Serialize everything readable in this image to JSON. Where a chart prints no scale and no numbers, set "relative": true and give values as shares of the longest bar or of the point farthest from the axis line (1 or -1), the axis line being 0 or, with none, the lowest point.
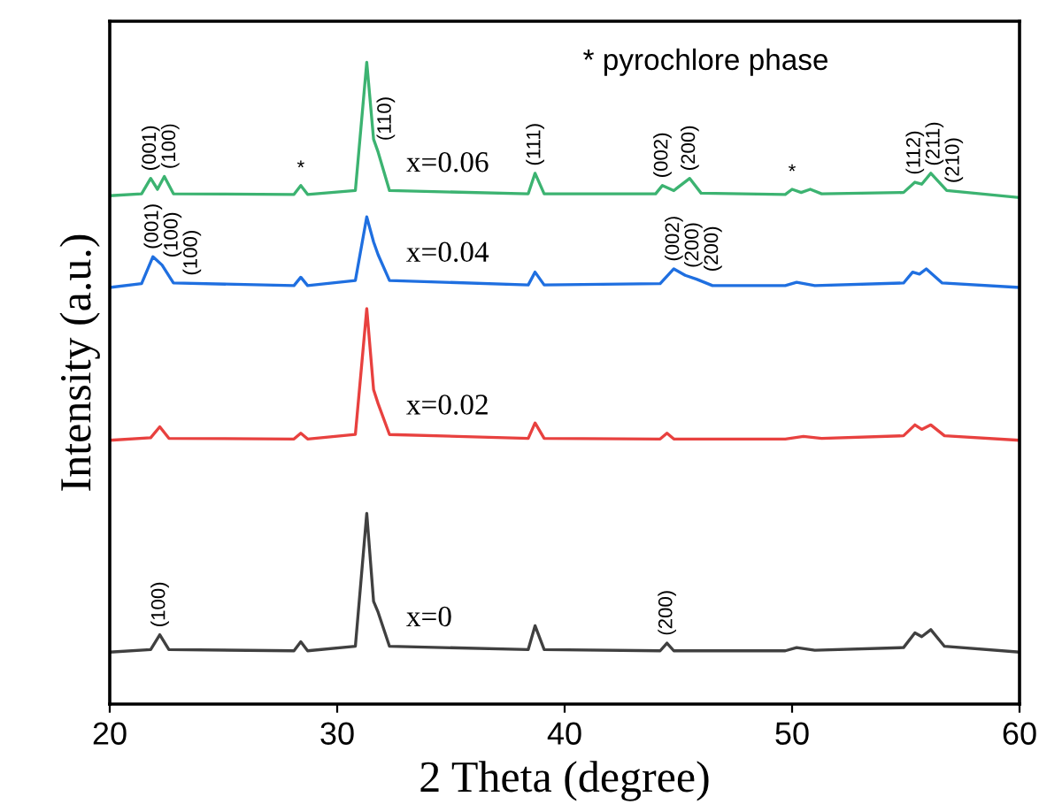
{
  "chart_data": {
    "type": "line",
    "relative": true,
    "xlabel": "2 Theta (degree)",
    "ylabel": "Intensity (a.u.)",
    "xlim": [
      20,
      60
    ],
    "xticks": [
      20,
      30,
      40,
      50,
      60
    ],
    "tick_labels": "x",
    "legend": false,
    "grid": false,
    "marker": "none",
    "line_style": "solid",
    "series": [
      {
        "name": "x=0",
        "color": "#404040",
        "x": [
          20,
          21.8,
          22.2,
          22.6,
          28.1,
          28.4,
          28.7,
          30.8,
          31.3,
          31.6,
          31.8,
          32.3,
          38.4,
          38.7,
          39.1,
          44.2,
          44.5,
          44.8,
          49.7,
          50.2,
          51,
          54.9,
          55.4,
          55.7,
          56.1,
          56.7,
          60
        ],
        "values": [
          0.081,
          0.085,
          0.108,
          0.085,
          0.083,
          0.097,
          0.083,
          0.09,
          0.297,
          0.16,
          0.143,
          0.09,
          0.085,
          0.122,
          0.085,
          0.083,
          0.095,
          0.083,
          0.083,
          0.088,
          0.084,
          0.088,
          0.111,
          0.105,
          0.116,
          0.09,
          0.081
        ]
      },
      {
        "name": "x=0.02",
        "color": "#e8413f",
        "x": [
          20,
          21.8,
          22.2,
          22.6,
          28.1,
          28.4,
          28.7,
          30.8,
          31.3,
          31.6,
          31.8,
          32.3,
          38.4,
          38.7,
          39.1,
          44.2,
          44.5,
          44.8,
          49.7,
          50.5,
          51.3,
          54.9,
          55.4,
          55.7,
          56.1,
          56.7,
          60
        ],
        "values": [
          0.411,
          0.415,
          0.432,
          0.414,
          0.413,
          0.422,
          0.413,
          0.42,
          0.616,
          0.49,
          0.468,
          0.42,
          0.414,
          0.438,
          0.414,
          0.413,
          0.422,
          0.413,
          0.413,
          0.417,
          0.414,
          0.418,
          0.435,
          0.428,
          0.435,
          0.418,
          0.411
        ]
      },
      {
        "name": "x=0.04",
        "color": "#1f6fe0",
        "x": [
          20,
          21.4,
          21.9,
          22.3,
          22.8,
          28.1,
          28.4,
          28.7,
          30.8,
          31.3,
          31.6,
          31.8,
          32.3,
          38.4,
          38.7,
          39.1,
          44.2,
          44.8,
          45.3,
          45.8,
          46.5,
          49.7,
          50.2,
          51,
          54.9,
          55.3,
          55.6,
          55.9,
          56.6,
          60
        ],
        "values": [
          0.649,
          0.655,
          0.697,
          0.684,
          0.656,
          0.652,
          0.665,
          0.652,
          0.66,
          0.759,
          0.72,
          0.7,
          0.66,
          0.653,
          0.673,
          0.653,
          0.655,
          0.678,
          0.668,
          0.662,
          0.652,
          0.652,
          0.657,
          0.652,
          0.656,
          0.673,
          0.67,
          0.678,
          0.656,
          0.649
        ]
      },
      {
        "name": "x=0.06",
        "color": "#3cb371",
        "x": [
          20,
          21.4,
          21.8,
          22.1,
          22.4,
          22.8,
          28.1,
          28.4,
          28.7,
          30.8,
          31.3,
          31.6,
          31.8,
          32.3,
          38.4,
          38.7,
          39.1,
          44.0,
          44.3,
          44.8,
          45.5,
          46.0,
          49.7,
          50.0,
          50.4,
          50.8,
          51.3,
          54.9,
          55.4,
          55.7,
          56.1,
          56.8,
          60
        ],
        "values": [
          0.792,
          0.795,
          0.819,
          0.802,
          0.822,
          0.795,
          0.794,
          0.808,
          0.794,
          0.8,
          1.0,
          0.88,
          0.86,
          0.8,
          0.795,
          0.827,
          0.795,
          0.795,
          0.808,
          0.8,
          0.819,
          0.796,
          0.794,
          0.802,
          0.797,
          0.802,
          0.795,
          0.797,
          0.813,
          0.81,
          0.827,
          0.8,
          0.789
        ]
      }
    ],
    "annotations": [
      "* pyrochlore phase",
      {
        "text": "(100)",
        "x": 22.2,
        "y": 0.108
      },
      {
        "text": "(200)",
        "x": 44.5,
        "y": 0.095
      },
      {
        "text": "(001)",
        "x": 21.9,
        "y": 0.697
      },
      {
        "text": "(100)",
        "x": 22.3,
        "y": 0.684
      },
      {
        "text": "(100)",
        "x": 22.8,
        "y": 0.656
      },
      {
        "text": "(002)",
        "x": 44.8,
        "y": 0.678
      },
      {
        "text": "(200)",
        "x": 45.3,
        "y": 0.668
      },
      {
        "text": "(200)",
        "x": 45.8,
        "y": 0.662
      },
      {
        "text": "(001)",
        "x": 21.8,
        "y": 0.819
      },
      {
        "text": "(100)",
        "x": 22.4,
        "y": 0.822
      },
      {
        "text": "*",
        "x": 28.4,
        "y": 0.808
      },
      {
        "text": "(110)",
        "x": 31.3,
        "y": 1.0
      },
      {
        "text": "(111)",
        "x": 38.7,
        "y": 0.827
      },
      {
        "text": "(002)",
        "x": 44.3,
        "y": 0.808
      },
      {
        "text": "(200)",
        "x": 45.5,
        "y": 0.819
      },
      {
        "text": "*",
        "x": 50.0,
        "y": 0.802
      },
      {
        "text": "(112)",
        "x": 55.4,
        "y": 0.813
      },
      {
        "text": "(211)",
        "x": 56.1,
        "y": 0.827
      },
      {
        "text": "(210)",
        "x": 56.8,
        "y": 0.8
      }
    ]
  }
}
